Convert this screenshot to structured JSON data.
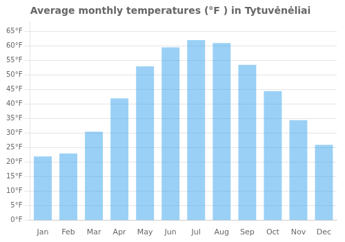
{
  "chart_data": {
    "type": "bar",
    "title": "Average monthly temperatures (°F ) in Tytuvėnėliai",
    "categories": [
      "Jan",
      "Feb",
      "Mar",
      "Apr",
      "May",
      "Jun",
      "Jul",
      "Aug",
      "Sep",
      "Oct",
      "Nov",
      "Dec"
    ],
    "values": [
      22,
      23,
      30.5,
      42,
      53,
      59.5,
      62,
      61,
      53.5,
      44.5,
      34.5,
      26
    ],
    "ylim": [
      0,
      68
    ],
    "yticks": [
      {
        "value": 0,
        "label": "0°F"
      },
      {
        "value": 5,
        "label": "5°F"
      },
      {
        "value": 10,
        "label": "10°F"
      },
      {
        "value": 15,
        "label": "15°F"
      },
      {
        "value": 20,
        "label": "20°F"
      },
      {
        "value": 25,
        "label": "25°F"
      },
      {
        "value": 30,
        "label": "30°F"
      },
      {
        "value": 35,
        "label": "35°F"
      },
      {
        "value": 40,
        "label": "40°F"
      },
      {
        "value": 45,
        "label": "45°F"
      },
      {
        "value": 50,
        "label": "50°F"
      },
      {
        "value": 55,
        "label": "55°F"
      },
      {
        "value": 60,
        "label": "60°F"
      },
      {
        "value": 65,
        "label": "65°F"
      }
    ],
    "grid": true
  }
}
